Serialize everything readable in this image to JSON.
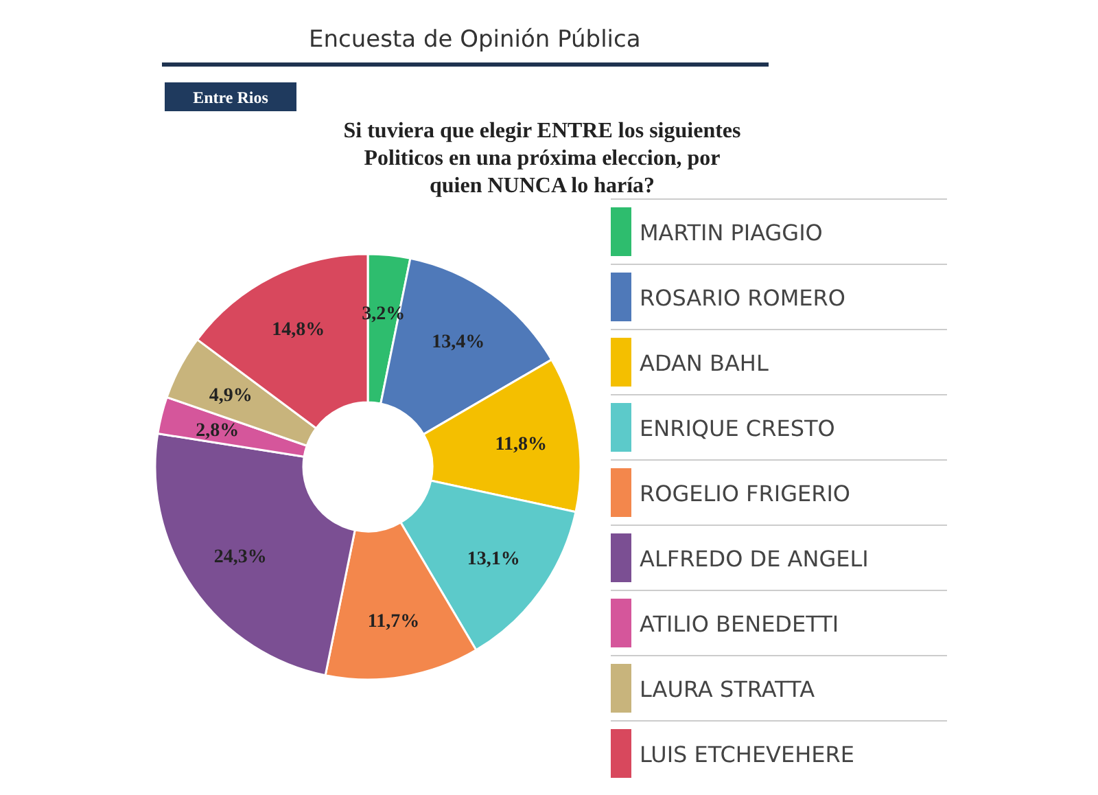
{
  "chart_data": {
    "type": "donut",
    "title": "Si tuviera que elegir ENTRE los siguientes\nPoliticos en una próxima eleccion, por\nquien NUNCA lo haría?",
    "subtitle": "Entre Rios",
    "annotations": [
      "Encuesta de Opinión Pública"
    ],
    "categories": [
      "MARTIN PIAGGIO",
      "ROSARIO ROMERO",
      "ADAN BAHL",
      "ENRIQUE CRESTO",
      "ROGELIO FRIGERIO",
      "ALFREDO DE ANGELI",
      "ATILIO BENEDETTI",
      "LAURA STRATTA",
      "LUIS ETCHEVEHERE"
    ],
    "values": [
      3.2,
      13.4,
      11.8,
      13.1,
      11.7,
      24.3,
      2.8,
      4.9,
      14.8
    ],
    "value_labels": [
      "3,2%",
      "13,4%",
      "11,8%",
      "13,1%",
      "11,7%",
      "24,3%",
      "2,8%",
      "4,9%",
      "14,8%"
    ],
    "colors": [
      "#2ebd6e",
      "#4f79b9",
      "#f4bf00",
      "#5ccaca",
      "#f3874c",
      "#7b4f93",
      "#d5569b",
      "#c8b47c",
      "#d8485d"
    ],
    "legend": "right"
  }
}
